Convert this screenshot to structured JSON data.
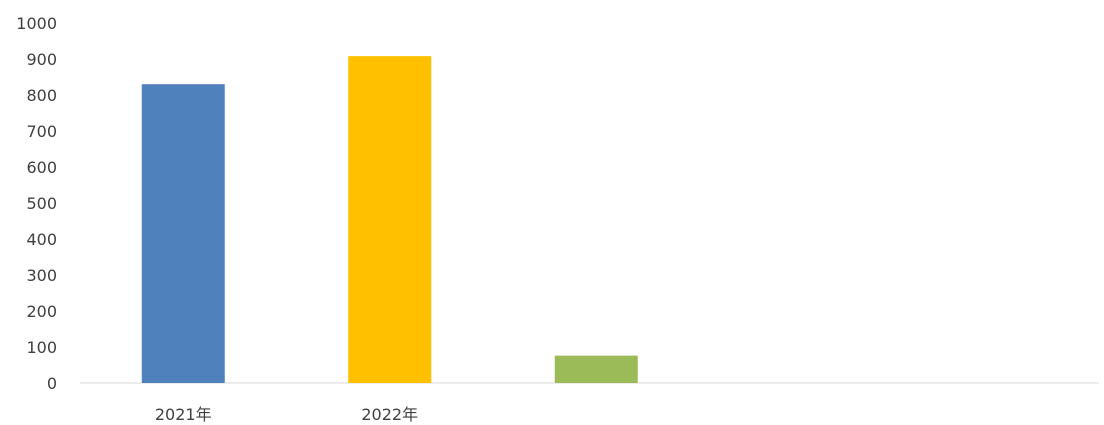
{
  "chart_data": {
    "type": "bar",
    "categories": [
      "2021年",
      "2022年",
      ""
    ],
    "values": [
      830,
      908,
      76
    ],
    "colors": [
      "#4f81bd",
      "#ffc000",
      "#9bbb59"
    ],
    "ylim": [
      0,
      1000
    ],
    "yticks": [
      0,
      100,
      200,
      300,
      400,
      500,
      600,
      700,
      800,
      900,
      1000
    ],
    "grid": false,
    "legend": "none"
  }
}
